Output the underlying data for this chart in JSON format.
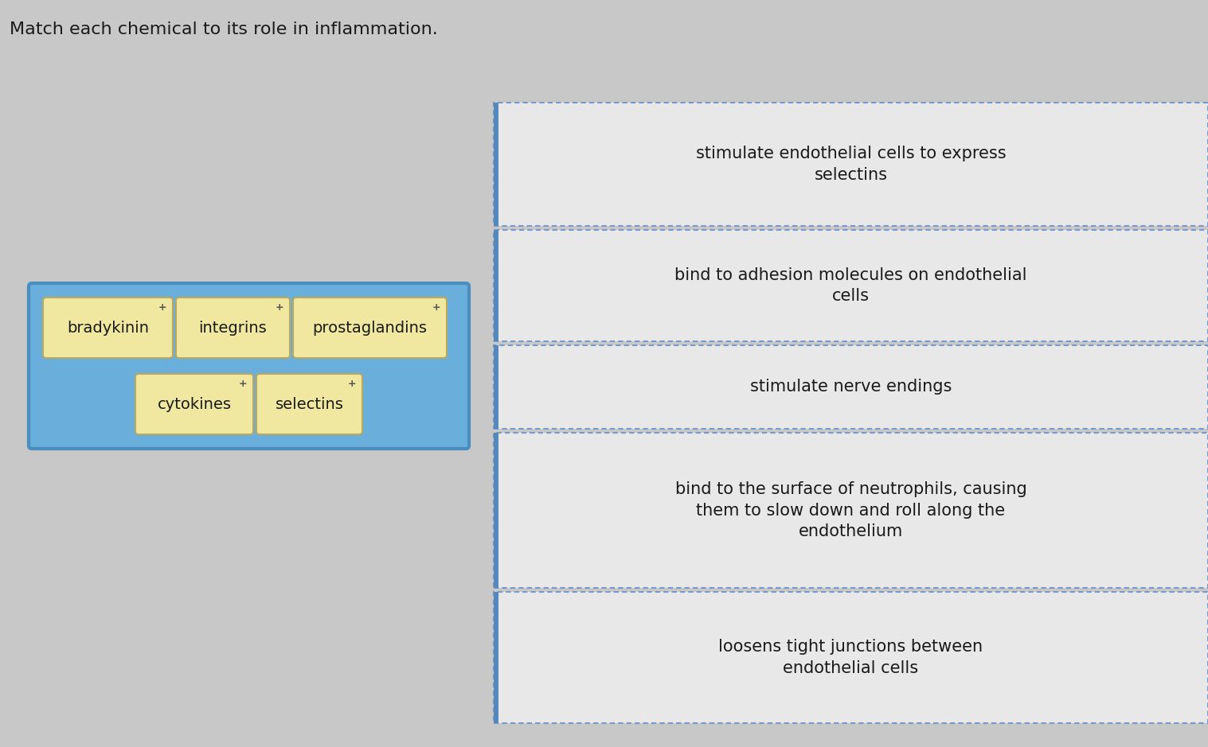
{
  "title": "Match each chemical to its role in inflammation.",
  "title_fontsize": 16,
  "title_color": "#1a1a1a",
  "bg_color": "#c8c8c8",
  "fig_width": 15.17,
  "fig_height": 9.39,
  "chemicals_row1": [
    "bradykinin",
    "integrins",
    "prostaglandins"
  ],
  "chemicals_row2": [
    "cytokines",
    "selectins"
  ],
  "chem_box_bg": "#f0e8a0",
  "chem_box_edge": "#b8a860",
  "chem_container_bg": "#6aaedc",
  "chem_container_edge": "#4a8ec0",
  "roles": [
    "stimulate endothelial cells to express\nselectins",
    "bind to adhesion molecules on endothelial\ncells",
    "stimulate nerve endings",
    "bind to the surface of neutrophils, causing\nthem to slow down and roll along the\nendothelium",
    "loosens tight junctions between\nendothelial cells"
  ],
  "role_box_bg": "#e8e8e8",
  "role_box_edge": "#7799cc",
  "role_text_color": "#1a1a1a",
  "role_fontsize": 15,
  "role_left_bar_color": "#5588bb"
}
